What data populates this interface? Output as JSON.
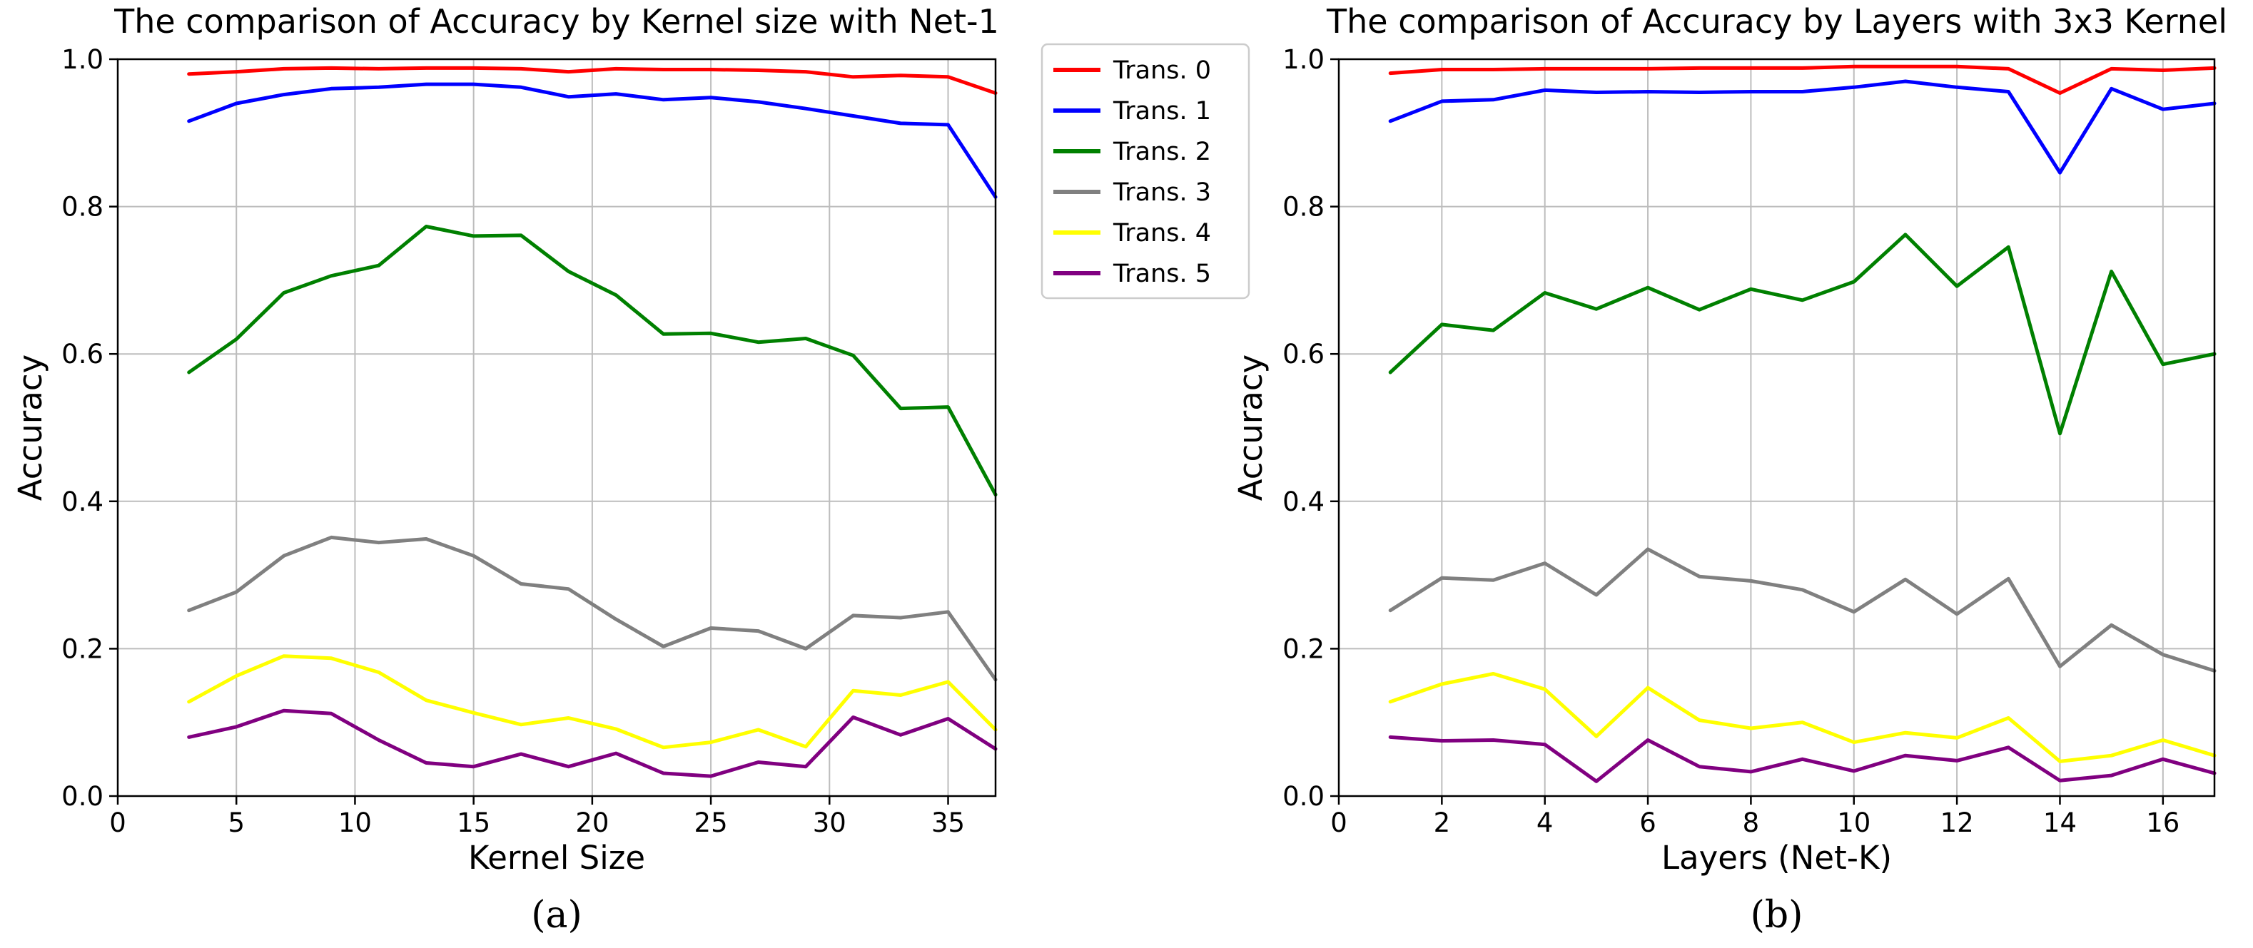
{
  "series_colors": {
    "Trans. 0": "#ff0000",
    "Trans. 1": "#0000ff",
    "Trans. 2": "#008000",
    "Trans. 3": "#808080",
    "Trans. 4": "#ffff00",
    "Trans. 5": "#800080"
  },
  "legend": {
    "entries": [
      "Trans. 0",
      "Trans. 1",
      "Trans. 2",
      "Trans. 3",
      "Trans. 4",
      "Trans. 5"
    ]
  },
  "chart_data": [
    {
      "id": "a",
      "type": "line",
      "title": "The comparison of Accuracy by Kernel size with Net-1",
      "xlabel": "Kernel Size",
      "ylabel": "Accuracy",
      "caption": "(a)",
      "xlim": [
        0,
        37
      ],
      "ylim": [
        0,
        1.0
      ],
      "xticks": [
        0,
        5,
        10,
        15,
        20,
        25,
        30,
        35
      ],
      "xtick_labels": [
        "0",
        "5",
        "10",
        "15",
        "20",
        "25",
        "30",
        "35"
      ],
      "yticks": [
        0,
        0.2,
        0.4,
        0.6,
        0.8,
        1.0
      ],
      "ytick_labels": [
        "0.0",
        "0.2",
        "0.4",
        "0.6",
        "0.8",
        "1.0"
      ],
      "grid": true,
      "x": [
        3,
        5,
        7,
        9,
        11,
        13,
        15,
        17,
        19,
        21,
        23,
        25,
        27,
        29,
        31,
        33,
        35,
        37
      ],
      "series": [
        {
          "name": "Trans. 0",
          "values": [
            0.98,
            0.983,
            0.987,
            0.988,
            0.987,
            0.988,
            0.988,
            0.987,
            0.983,
            0.987,
            0.986,
            0.986,
            0.985,
            0.983,
            0.976,
            0.978,
            0.976,
            0.954
          ]
        },
        {
          "name": "Trans. 1",
          "values": [
            0.916,
            0.94,
            0.952,
            0.96,
            0.962,
            0.966,
            0.966,
            0.962,
            0.949,
            0.953,
            0.945,
            0.948,
            0.942,
            0.933,
            0.923,
            0.913,
            0.911,
            0.813
          ]
        },
        {
          "name": "Trans. 2",
          "values": [
            0.575,
            0.62,
            0.683,
            0.706,
            0.72,
            0.773,
            0.76,
            0.761,
            0.712,
            0.68,
            0.627,
            0.628,
            0.616,
            0.621,
            0.598,
            0.526,
            0.528,
            0.409
          ]
        },
        {
          "name": "Trans. 3",
          "values": [
            0.252,
            0.277,
            0.326,
            0.351,
            0.344,
            0.349,
            0.326,
            0.288,
            0.281,
            0.24,
            0.203,
            0.228,
            0.224,
            0.2,
            0.245,
            0.242,
            0.25,
            0.158
          ]
        },
        {
          "name": "Trans. 4",
          "values": [
            0.128,
            0.163,
            0.19,
            0.187,
            0.168,
            0.13,
            0.113,
            0.097,
            0.106,
            0.091,
            0.066,
            0.073,
            0.09,
            0.067,
            0.143,
            0.137,
            0.155,
            0.09
          ]
        },
        {
          "name": "Trans. 5",
          "values": [
            0.08,
            0.094,
            0.116,
            0.112,
            0.076,
            0.045,
            0.04,
            0.057,
            0.04,
            0.058,
            0.031,
            0.027,
            0.046,
            0.04,
            0.107,
            0.083,
            0.105,
            0.064
          ]
        }
      ]
    },
    {
      "id": "b",
      "type": "line",
      "title": "The comparison of Accuracy by Layers with 3x3 Kernel",
      "xlabel": "Layers (Net-K)",
      "ylabel": "Accuracy",
      "caption": "(b)",
      "xlim": [
        0,
        17
      ],
      "ylim": [
        0,
        1.0
      ],
      "xticks": [
        0,
        2,
        4,
        6,
        8,
        10,
        12,
        14,
        16
      ],
      "xtick_labels": [
        "0",
        "2",
        "4",
        "6",
        "8",
        "10",
        "12",
        "14",
        "16"
      ],
      "yticks": [
        0,
        0.2,
        0.4,
        0.6,
        0.8,
        1.0
      ],
      "ytick_labels": [
        "0.0",
        "0.2",
        "0.4",
        "0.6",
        "0.8",
        "1.0"
      ],
      "grid": true,
      "x": [
        1,
        2,
        3,
        4,
        5,
        6,
        7,
        8,
        9,
        10,
        11,
        12,
        13,
        14,
        15,
        16,
        17
      ],
      "series": [
        {
          "name": "Trans. 0",
          "values": [
            0.981,
            0.986,
            0.986,
            0.987,
            0.987,
            0.987,
            0.988,
            0.988,
            0.988,
            0.99,
            0.99,
            0.99,
            0.987,
            0.954,
            0.987,
            0.985,
            0.988
          ]
        },
        {
          "name": "Trans. 1",
          "values": [
            0.916,
            0.943,
            0.945,
            0.958,
            0.955,
            0.956,
            0.955,
            0.956,
            0.956,
            0.962,
            0.97,
            0.962,
            0.956,
            0.846,
            0.96,
            0.932,
            0.94
          ]
        },
        {
          "name": "Trans. 2",
          "values": [
            0.575,
            0.64,
            0.632,
            0.683,
            0.661,
            0.69,
            0.66,
            0.688,
            0.673,
            0.698,
            0.762,
            0.692,
            0.745,
            0.492,
            0.712,
            0.586,
            0.6
          ]
        },
        {
          "name": "Trans. 3",
          "values": [
            0.252,
            0.296,
            0.293,
            0.316,
            0.273,
            0.335,
            0.298,
            0.292,
            0.28,
            0.25,
            0.294,
            0.247,
            0.295,
            0.176,
            0.232,
            0.192,
            0.17
          ]
        },
        {
          "name": "Trans. 4",
          "values": [
            0.128,
            0.152,
            0.166,
            0.145,
            0.081,
            0.147,
            0.103,
            0.092,
            0.1,
            0.073,
            0.086,
            0.079,
            0.106,
            0.047,
            0.055,
            0.076,
            0.055
          ]
        },
        {
          "name": "Trans. 5",
          "values": [
            0.08,
            0.075,
            0.076,
            0.07,
            0.02,
            0.076,
            0.04,
            0.033,
            0.05,
            0.034,
            0.055,
            0.048,
            0.066,
            0.021,
            0.028,
            0.05,
            0.031
          ]
        }
      ]
    }
  ]
}
